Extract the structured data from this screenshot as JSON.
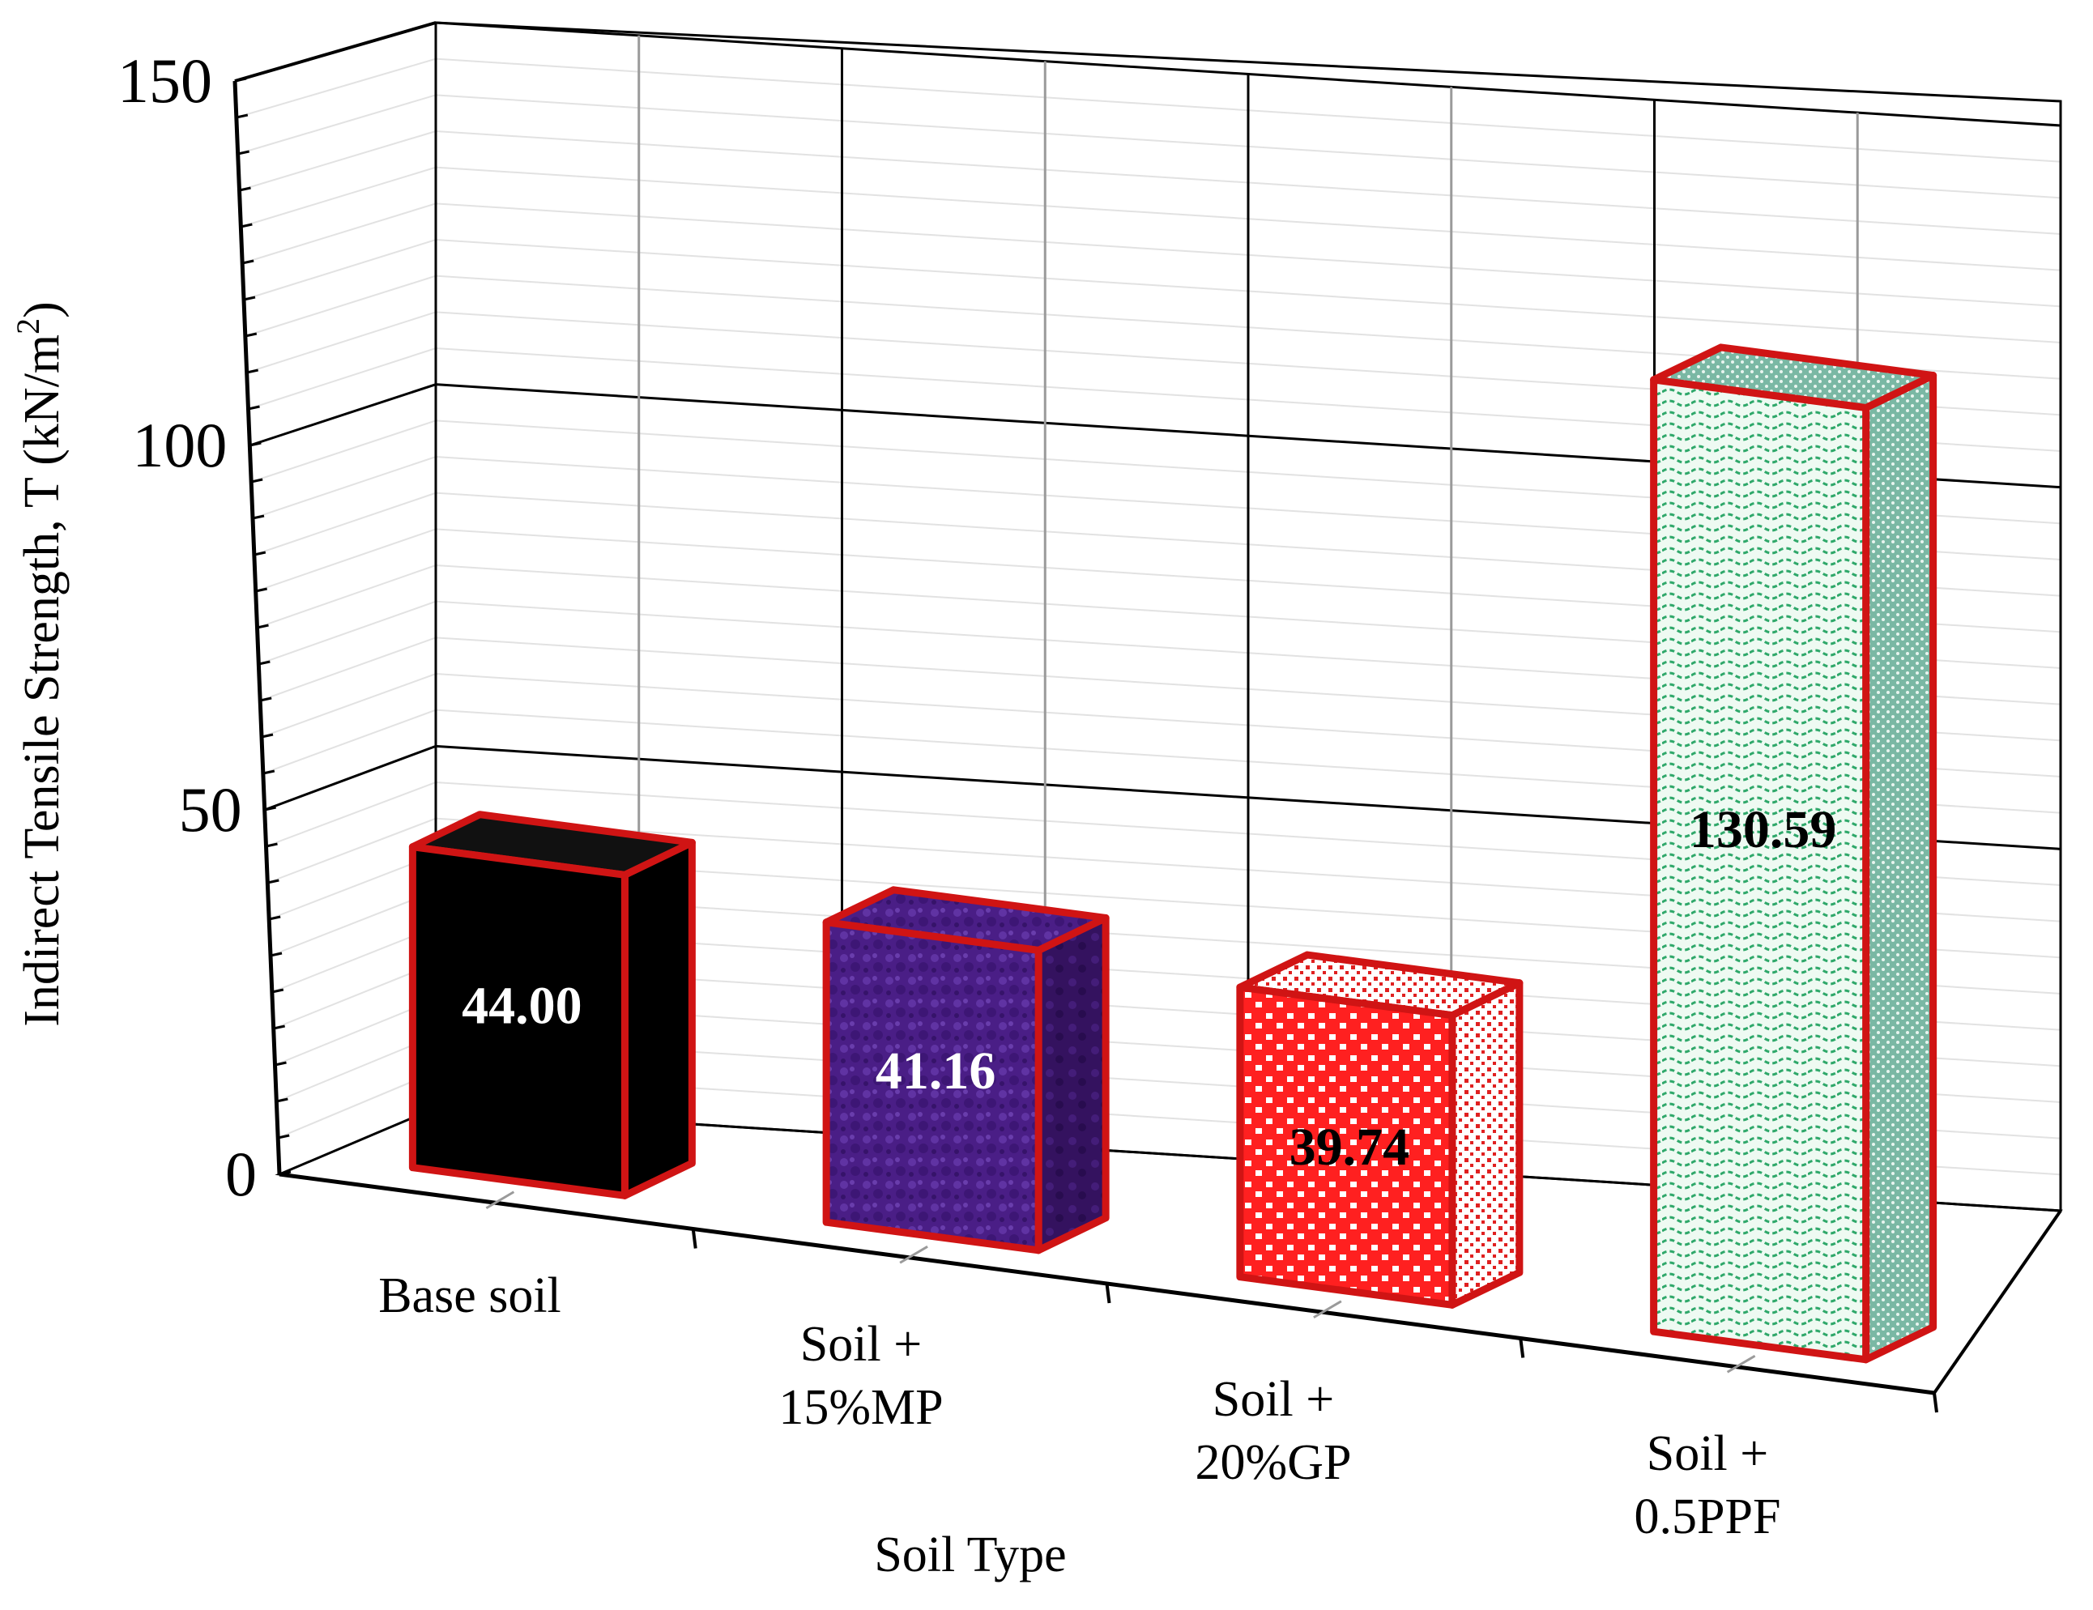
{
  "chart_data": {
    "type": "bar",
    "style": "3d-column",
    "categories": [
      [
        "Base soil"
      ],
      [
        "Soil +",
        "15%MP"
      ],
      [
        "Soil +",
        "20%GP"
      ],
      [
        "Soil +",
        "0.5PPF"
      ]
    ],
    "values": [
      44.0,
      41.16,
      39.74,
      130.59
    ],
    "value_labels": [
      "44.00",
      "41.16",
      "39.74",
      "130.59"
    ],
    "xlabel": "Soil Type",
    "ylabel": "Indirect Tensile Strength, T (kN/m",
    "ylabel_superscript": "2",
    "ylabel_close": ")",
    "ylim": [
      0,
      150
    ],
    "y_ticks": [
      0,
      50,
      100,
      150
    ],
    "y_tick_labels": [
      "0",
      "50",
      "100",
      "150"
    ],
    "grid": true,
    "legend": "none",
    "bar_fills": [
      "#000000",
      "#4b1f86",
      "#ff2a2a",
      "#e8f7ee"
    ],
    "bar_patterns": [
      "solid",
      "purple-texture",
      "red-white-checker",
      "green-wave"
    ],
    "bar_outline": "#d01414",
    "label_colors": [
      "#ffffff",
      "#ffffff",
      "#000000",
      "#000000"
    ]
  }
}
